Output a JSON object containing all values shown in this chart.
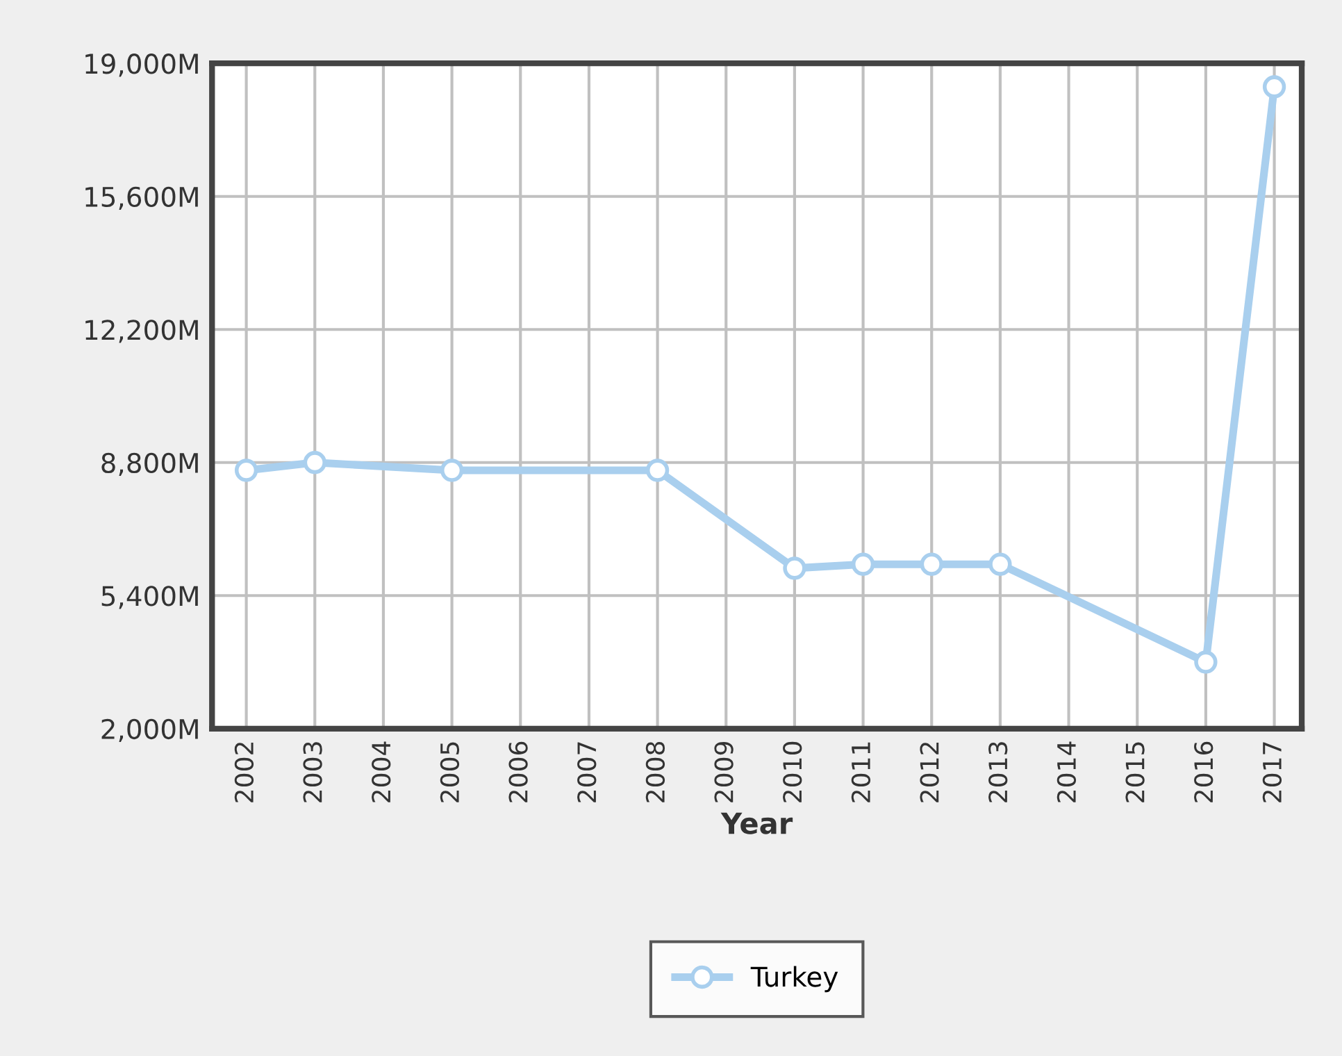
{
  "chart_data": {
    "type": "line",
    "xlabel": "Year",
    "x": [
      2002,
      2003,
      2005,
      2008,
      2010,
      2011,
      2012,
      2013,
      2016,
      2017
    ],
    "series": [
      {
        "name": "Turkey",
        "color": "#a9cfee",
        "values": [
          8600,
          8800,
          8600,
          8600,
          6100,
          6200,
          6200,
          6200,
          3700,
          18400
        ]
      }
    ],
    "xlim": [
      2001.5,
      2017.4
    ],
    "xticks": [
      2002,
      2003,
      2004,
      2005,
      2006,
      2007,
      2008,
      2009,
      2010,
      2011,
      2012,
      2013,
      2014,
      2015,
      2016,
      2017
    ],
    "ylim": [
      2000,
      19000
    ],
    "yticks": [
      {
        "value": 2000,
        "label": "2,000M"
      },
      {
        "value": 5400,
        "label": "5,400M"
      },
      {
        "value": 8800,
        "label": "8,800M"
      },
      {
        "value": 12200,
        "label": "12,200M"
      },
      {
        "value": 15600,
        "label": "15,600M"
      },
      {
        "value": 19000,
        "label": "19,000M"
      }
    ],
    "grid": true,
    "legend": "bottom",
    "marker": "circle",
    "line_style": "solid"
  }
}
